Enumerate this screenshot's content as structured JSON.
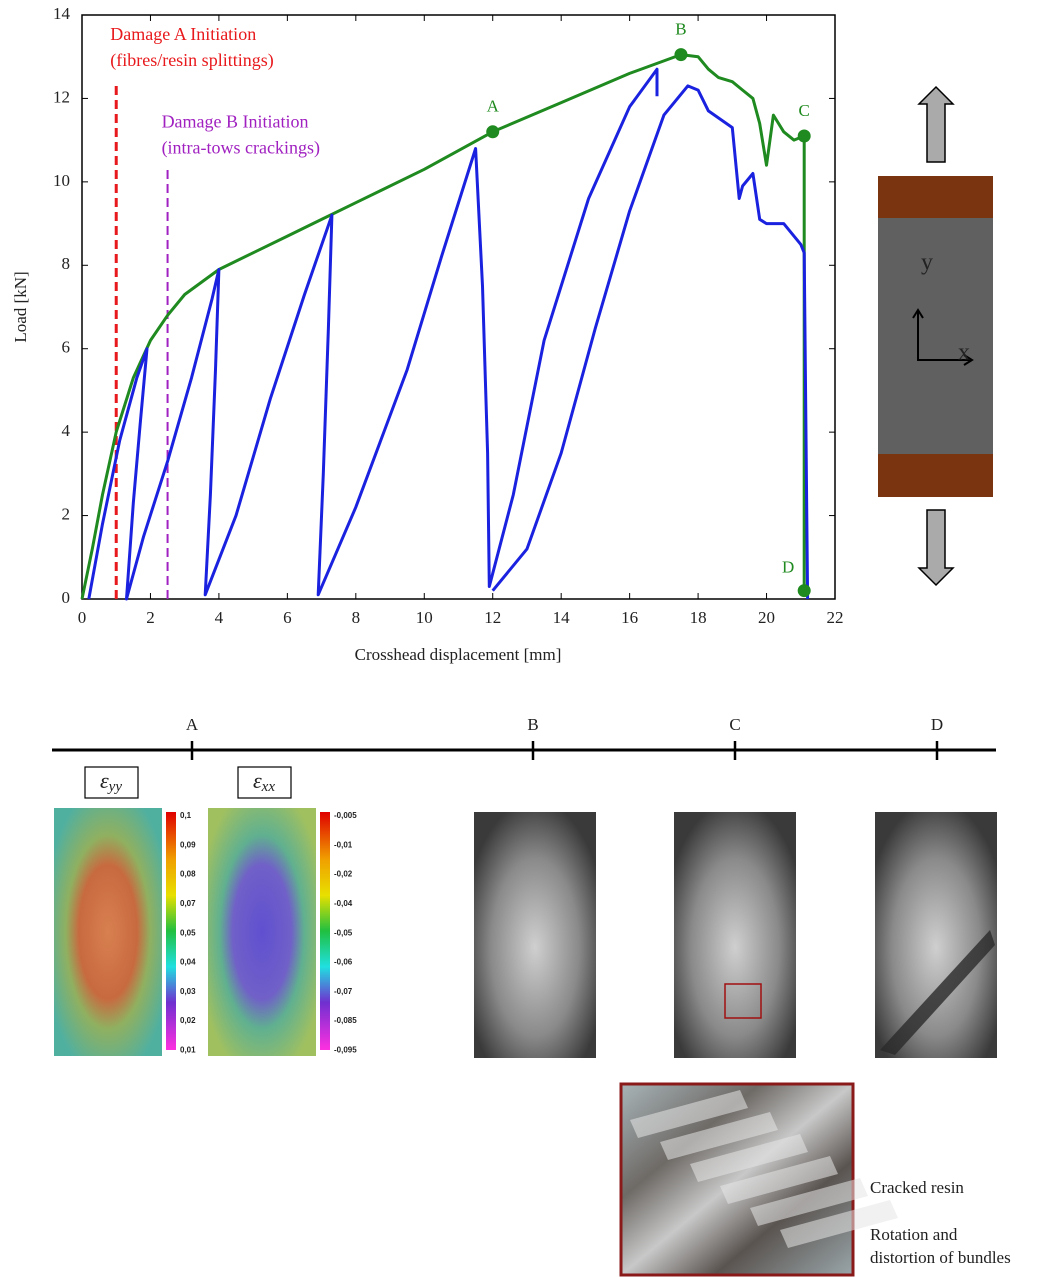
{
  "chart_data": {
    "type": "line",
    "xlabel": "Crosshead displacement [mm]",
    "ylabel": "Load [kN]",
    "xlim": [
      0,
      22
    ],
    "ylim": [
      0,
      14
    ],
    "xticks": [
      0,
      2,
      4,
      6,
      8,
      10,
      12,
      14,
      16,
      18,
      20,
      22
    ],
    "yticks": [
      0,
      2,
      4,
      6,
      8,
      10,
      12,
      14
    ],
    "series": [
      {
        "color": "#1f8a1f",
        "x": [
          0,
          0.3,
          0.6,
          1,
          1.5,
          2,
          2.5,
          3,
          4,
          5,
          6,
          7,
          8,
          10,
          12,
          14,
          16,
          17,
          17.5,
          18,
          18.3,
          18.6,
          19,
          19.3,
          19.6,
          19.8,
          20,
          20.2,
          20.5,
          20.8,
          21.1,
          21.1
        ],
        "values": [
          0,
          1.2,
          2.5,
          4,
          5.3,
          6.2,
          6.8,
          7.3,
          7.9,
          8.3,
          8.7,
          9.1,
          9.5,
          10.3,
          11.2,
          11.9,
          12.6,
          12.9,
          13.05,
          13.0,
          12.7,
          12.5,
          12.4,
          12.2,
          12.0,
          11.4,
          10.4,
          11.6,
          11.2,
          11.0,
          11.1,
          0.2
        ]
      },
      {
        "color": "#1a22e0",
        "x": [
          0.2,
          0.6,
          1.1,
          1.6,
          1.9,
          1.7,
          1.5,
          1.3,
          1.8,
          2.5,
          3.2,
          3.8,
          4.0,
          3.9,
          3.75,
          3.6,
          4.5,
          5.5,
          6.5,
          7.3,
          7.2,
          7.05,
          6.9,
          8,
          9.5,
          10.5,
          11.5,
          11.7,
          11.85,
          11.9,
          12.6,
          13.5,
          14.8,
          16,
          16.8,
          16.8,
          null,
          12,
          13,
          14,
          15,
          16,
          17,
          17.7,
          18,
          18.3,
          19,
          19.2,
          19.3,
          19.6,
          19.8,
          20,
          20.5,
          21,
          21.1,
          21.2
        ],
        "values": [
          0,
          1.8,
          3.8,
          5.3,
          6.0,
          4.2,
          2.3,
          0,
          1.5,
          3.3,
          5.3,
          7.2,
          7.9,
          5.5,
          2.5,
          0.1,
          2.0,
          4.8,
          7.3,
          9.2,
          6.5,
          3.0,
          0.1,
          2.2,
          5.5,
          8.2,
          10.8,
          7.5,
          3.5,
          0.3,
          2.5,
          6.2,
          9.6,
          11.8,
          12.7,
          12.05,
          null,
          0.2,
          1.2,
          3.5,
          6.5,
          9.3,
          11.6,
          12.3,
          12.2,
          11.7,
          11.3,
          9.6,
          9.9,
          10.2,
          9.1,
          9.0,
          9.0,
          8.5,
          8.3,
          0
        ]
      }
    ],
    "points": [
      {
        "label": "A",
        "x": 12,
        "y": 11.2
      },
      {
        "label": "B",
        "x": 17.5,
        "y": 13.05
      },
      {
        "label": "C",
        "x": 21.1,
        "y": 11.1
      },
      {
        "label": "D",
        "x": 21.1,
        "y": 0.2
      }
    ],
    "annotations": [
      {
        "text": [
          "Damage A Initiation",
          "(fibres/resin splittings)"
        ],
        "x": 1,
        "ylim": [
          0,
          12.4
        ],
        "color": "#e8191c",
        "width": 3
      },
      {
        "text": [
          "Damage B Initiation",
          "(intra-tows crackings)"
        ],
        "x": 2.5,
        "ylim": [
          0,
          10.3
        ],
        "color": "#a020c0",
        "width": 2
      }
    ]
  },
  "specimen": {
    "axes": [
      "y",
      "x"
    ]
  },
  "timeline": {
    "labels": [
      "A",
      "B",
      "C",
      "D"
    ]
  },
  "strain_maps": [
    {
      "symbol": "ε",
      "subscript": "yy",
      "colorbar": [
        "0,1",
        "0,09",
        "0,08",
        "0,07",
        "0,05",
        "0,04",
        "0,03",
        "0,02",
        "0,01"
      ]
    },
    {
      "symbol": "ε",
      "subscript": "xx",
      "colorbar": [
        "-0,005",
        "-0,01",
        "-0,02",
        "-0,04",
        "-0,05",
        "-0,06",
        "-0,07",
        "-0,085",
        "-0,095"
      ]
    }
  ],
  "zoom_notes": [
    [
      "Cracked resin"
    ],
    [
      "Rotation and",
      "distortion of bundles"
    ]
  ]
}
